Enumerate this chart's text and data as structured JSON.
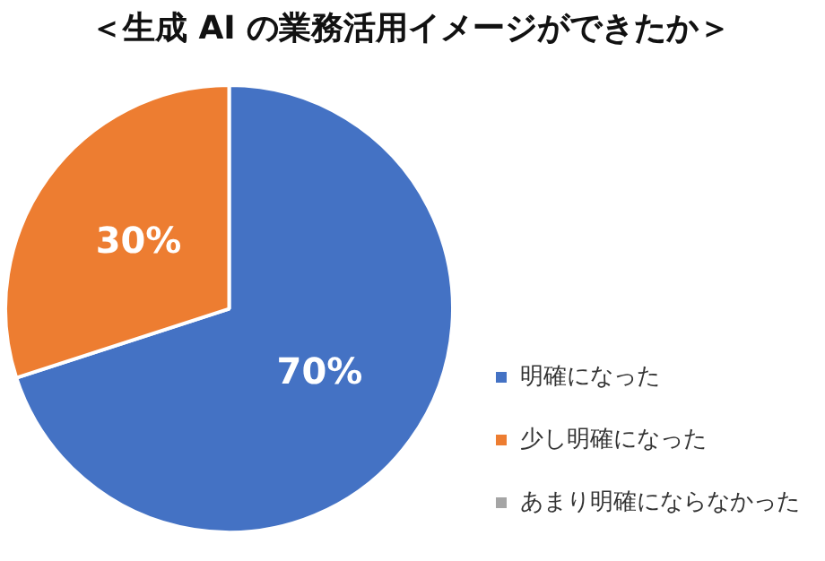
{
  "chart_data": {
    "type": "pie",
    "title": "＜生成 AI の業務活用イメージができたか＞",
    "categories": [
      "明確になった",
      "少し明確になった",
      "あまり明確にならなかった"
    ],
    "values": [
      70,
      30,
      0
    ],
    "colors": [
      "#4472c4",
      "#ed7d31",
      "#a5a5a5"
    ],
    "value_labels": [
      "70%",
      "30%",
      null
    ],
    "legend": "bottom right"
  }
}
